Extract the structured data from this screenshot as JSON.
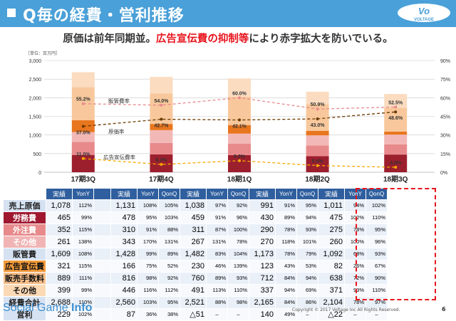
{
  "header": {
    "title": "Q毎の経費・営利推移",
    "logo_text": "VOLTAGE",
    "subtitle_a": "原価は前年同期並。",
    "subtitle_b": "広告宣伝費の抑制等",
    "subtitle_c": "により赤字拡大を防いでいる。",
    "accent": "#4aa0d8",
    "emphasis_color": "#e8141c"
  },
  "unit_label": "［単位：百万円］",
  "chart_data": {
    "type": "bar",
    "categories": [
      "17期3Q",
      "17期4Q",
      "18期1Q",
      "18期2Q",
      "18期3Q"
    ],
    "y_ticks_left": [
      "0",
      "500",
      "1,000",
      "1,500",
      "2,000",
      "2,500",
      "3,000"
    ],
    "y_ticks_right": [
      "0%",
      "15%",
      "30%",
      "45%",
      "60%",
      "75%",
      "90%"
    ],
    "ylim_left": [
      0,
      3000
    ],
    "ylim_right": [
      0,
      90
    ],
    "grid": true,
    "stacks": [
      {
        "name": "労務費",
        "color": "#9c1f2e",
        "values": [
          465,
          478,
          459,
          430,
          475
        ]
      },
      {
        "name": "外注費",
        "color": "#e88a8c",
        "values": [
          352,
          310,
          311,
          290,
          275
        ]
      },
      {
        "name": "その他",
        "color": "#f2b8b6",
        "values": [
          261,
          343,
          267,
          270,
          260
        ]
      },
      {
        "name": "広告宣伝費",
        "color": "#e8761e",
        "values": [
          321,
          166,
          230,
          123,
          82
        ]
      },
      {
        "name": "販売手数料",
        "color": "#f8c89c",
        "values": [
          889,
          816,
          760,
          712,
          638
        ]
      },
      {
        "name": "その他",
        "color": "#fbdcc0",
        "values": [
          399,
          446,
          491,
          337,
          371
        ]
      }
    ],
    "lines": [
      {
        "name": "販管費率",
        "color": "#e88a8c",
        "dash": "4,3",
        "values": [
          55.2,
          54.0,
          60.0,
          50.9,
          52.5
        ],
        "labels": [
          "55.2%",
          "54.0%",
          "60.0%",
          "50.9%",
          "52.5%"
        ]
      },
      {
        "name": "原価率",
        "color": "#6b3a00",
        "dash": "4,3",
        "values": [
          37.0,
          42.7,
          42.1,
          43.0,
          48.6
        ],
        "labels": [
          "37.0%",
          "42.7%",
          "42.1%",
          "43.0%",
          "48.6%"
        ]
      },
      {
        "name": "広告宣伝費率",
        "color": "#f5a800",
        "dash": "4,3",
        "values": [
          11.0,
          6.3,
          9.3,
          5.4,
          4.0
        ],
        "labels": [
          "11.0%",
          "6.3%",
          "9.3%",
          "5.4%",
          "4.0%"
        ]
      }
    ],
    "annotations": [
      "販管費率",
      "原価率",
      "広告宣伝費率"
    ]
  },
  "table": {
    "col_headers": [
      {
        "a": "実績",
        "b": "YonY",
        "c": ""
      },
      {
        "a": "実績",
        "b": "YonY",
        "c": "QonQ"
      },
      {
        "a": "実績",
        "b": "YonY",
        "c": "QonQ"
      },
      {
        "a": "実績",
        "b": "YonY",
        "c": "QonQ"
      },
      {
        "a": "実績",
        "b": "YonY",
        "c": "QonQ"
      }
    ],
    "rows": [
      {
        "label": "売上原価",
        "style": "lbl-main",
        "cells": [
          "1,078",
          "112%",
          "",
          "1,131",
          "108%",
          "105%",
          "1,038",
          "97%",
          "92%",
          "991",
          "91%",
          "95%",
          "1,011",
          "94%",
          "102%"
        ]
      },
      {
        "label": "労務費",
        "style": "lbl-cost",
        "cells": [
          "465",
          "99%",
          "",
          "478",
          "95%",
          "103%",
          "459",
          "91%",
          "96%",
          "430",
          "89%",
          "94%",
          "475",
          "102%",
          "110%"
        ]
      },
      {
        "label": "外注費",
        "style": "lbl-cost2",
        "cells": [
          "352",
          "115%",
          "",
          "310",
          "91%",
          "88%",
          "311",
          "87%",
          "100%",
          "290",
          "78%",
          "93%",
          "275",
          "78%",
          "95%"
        ]
      },
      {
        "label": "その他",
        "style": "lbl-cost3",
        "cells": [
          "261",
          "138%",
          "",
          "343",
          "170%",
          "131%",
          "267",
          "131%",
          "78%",
          "270",
          "118%",
          "101%",
          "260",
          "100%",
          "96%"
        ]
      },
      {
        "label": "販管費",
        "style": "lbl-main",
        "cells": [
          "1,609",
          "108%",
          "",
          "1,428",
          "99%",
          "89%",
          "1,482",
          "83%",
          "104%",
          "1,173",
          "78%",
          "79%",
          "1,092",
          "68%",
          "93%"
        ]
      },
      {
        "label": "広告宣伝費",
        "style": "lbl-s1",
        "cells": [
          "321",
          "115%",
          "",
          "166",
          "75%",
          "52%",
          "230",
          "46%",
          "139%",
          "123",
          "43%",
          "53%",
          "82",
          "26%",
          "67%"
        ]
      },
      {
        "label": "販売手数料",
        "style": "lbl-s2",
        "cells": [
          "889",
          "111%",
          "",
          "816",
          "98%",
          "92%",
          "760",
          "89%",
          "93%",
          "712",
          "84%",
          "94%",
          "638",
          "72%",
          "90%"
        ]
      },
      {
        "label": "その他",
        "style": "lbl-s3",
        "cells": [
          "399",
          "99%",
          "",
          "446",
          "116%",
          "112%",
          "491",
          "113%",
          "110%",
          "337",
          "94%",
          "69%",
          "371",
          "93%",
          "110%"
        ]
      },
      {
        "label": "経費合計",
        "style": "lbl-total",
        "cells": [
          "2,688",
          "110%",
          "",
          "2,560",
          "103%",
          "95%",
          "2,521",
          "88%",
          "98%",
          "2,165",
          "84%",
          "86%",
          "2,104",
          "78%",
          "97%"
        ]
      },
      {
        "label": "営利",
        "style": "lbl-total",
        "cells": [
          "229",
          "102%",
          "",
          "87",
          "36%",
          "38%",
          "△51",
          "–",
          "–",
          "140",
          "49%",
          "–",
          "△22",
          "–",
          "–"
        ]
      }
    ]
  },
  "footer": {
    "brand_a": "Social Game ",
    "brand_b": "Info",
    "copyright": "Copyright © 2017 Voltage Inc  All Rights Reserved.",
    "page_number": "6"
  }
}
